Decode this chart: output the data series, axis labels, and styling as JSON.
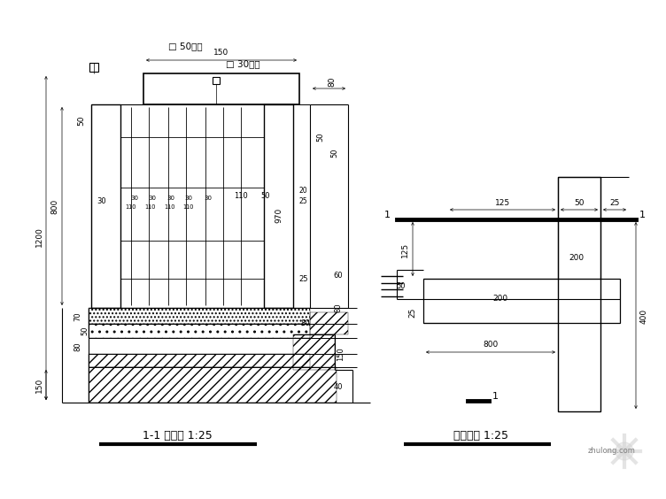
{
  "bg_color": "#ffffff",
  "lc": "#000000",
  "label_50tube": "□ 50钓管",
  "label_30tube": "□ 30钓管",
  "title_left": "1-1 剖面图 1:25",
  "title_right": "露台栏杆 1:25",
  "fig_width": 7.52,
  "fig_height": 5.64,
  "dpi": 100
}
